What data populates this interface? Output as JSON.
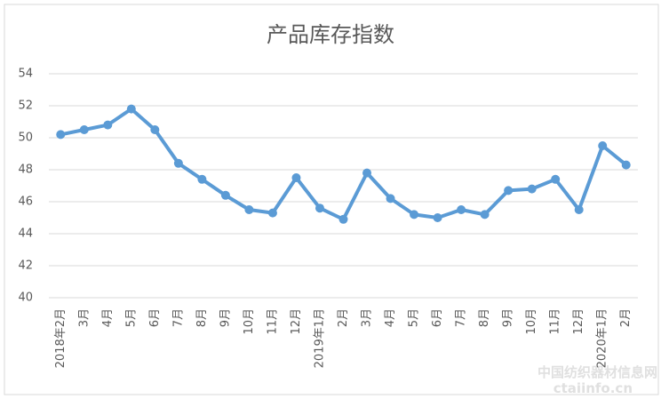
{
  "chart_data": {
    "type": "line",
    "title": "产品库存指数",
    "categories": [
      "2018年2月",
      "3月",
      "4月",
      "5月",
      "6月",
      "7月",
      "8月",
      "9月",
      "10月",
      "11月",
      "12月",
      "2019年1月",
      "2月",
      "3月",
      "4月",
      "5月",
      "6月",
      "7月",
      "8月",
      "9月",
      "10月",
      "11月",
      "12月",
      "2020年1月",
      "2月"
    ],
    "values": [
      50.2,
      50.5,
      50.8,
      51.8,
      50.5,
      48.4,
      47.4,
      46.4,
      45.5,
      45.3,
      47.5,
      45.6,
      44.9,
      47.8,
      46.2,
      45.2,
      45.0,
      45.5,
      45.2,
      46.7,
      46.8,
      47.4,
      45.5,
      49.5,
      48.3
    ],
    "color": "#5b9bd5",
    "ylim": [
      40,
      54
    ],
    "yticks": [
      40,
      42,
      44,
      46,
      48,
      50,
      52,
      54
    ],
    "grid": true,
    "watermark": [
      "中国纺织器材信息网",
      "ctaiinfo.cn"
    ]
  }
}
